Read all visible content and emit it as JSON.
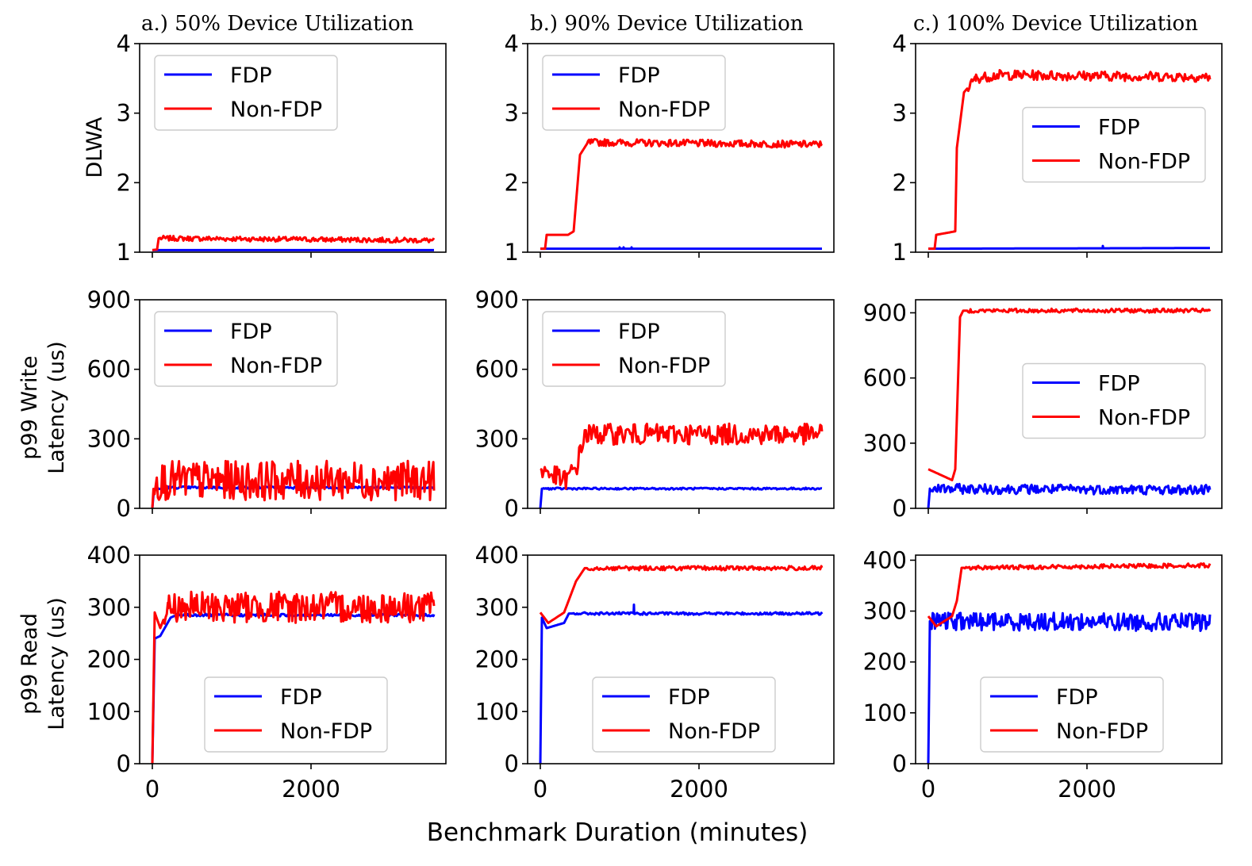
{
  "figure": {
    "xlabel": "Benchmark Duration (minutes)",
    "column_titles": [
      "a.) 50% Device Utilization",
      "b.) 90% Device Utilization",
      "c.) 100% Device Utilization"
    ],
    "row_ylabels": [
      [
        "DLWA"
      ],
      [
        "p99  Write",
        "Latency (us)"
      ],
      [
        "p99  Read",
        "Latency (us)"
      ]
    ],
    "colors": {
      "FDP": "#0000ff",
      "Non-FDP": "#ff0000"
    }
  },
  "chart_data": [
    {
      "type": "line",
      "panel": "a-DLWA",
      "title": "a.) 50% Device Utilization",
      "ylabel": "DLWA",
      "xlabel": "",
      "xlim": [
        -160,
        3700
      ],
      "ylim": [
        1.0,
        4.0
      ],
      "yticks": [
        1,
        2,
        3,
        4
      ],
      "xticks": [
        0,
        2000
      ],
      "show_xticklabels": false,
      "legend": "top-left",
      "series": [
        {
          "name": "FDP",
          "style": "flat",
          "points": [
            [
              0,
              1.03
            ],
            [
              3550,
              1.03
            ]
          ],
          "level": 1.03,
          "noise": 0.0
        },
        {
          "name": "Non-FDP",
          "style": "noisy",
          "points": [
            [
              0,
              1.03
            ],
            [
              60,
              1.04
            ],
            [
              80,
              1.2
            ],
            [
              3550,
              1.17
            ]
          ],
          "noise": 0.07,
          "start_noise_x": 90
        }
      ]
    },
    {
      "type": "line",
      "panel": "b-DLWA",
      "title": "b.) 90% Device Utilization",
      "ylabel": "",
      "xlabel": "",
      "xlim": [
        -160,
        3700
      ],
      "ylim": [
        1.0,
        4.0
      ],
      "yticks": [
        1,
        2,
        3,
        4
      ],
      "xticks": [
        0,
        2000
      ],
      "show_xticklabels": false,
      "legend": "top-left",
      "series": [
        {
          "name": "FDP",
          "style": "flat",
          "points": [
            [
              0,
              1.05
            ],
            [
              3550,
              1.05
            ]
          ],
          "noise": 0.0,
          "spikes": [
            [
              1000,
              1.07
            ],
            [
              1050,
              1.07
            ],
            [
              1150,
              1.07
            ]
          ]
        },
        {
          "name": "Non-FDP",
          "style": "noisy",
          "points": [
            [
              0,
              1.05
            ],
            [
              60,
              1.05
            ],
            [
              80,
              1.25
            ],
            [
              350,
              1.25
            ],
            [
              420,
              1.3
            ],
            [
              500,
              2.4
            ],
            [
              600,
              2.58
            ],
            [
              3550,
              2.55
            ]
          ],
          "noise": 0.1,
          "start_noise_x": 600
        }
      ]
    },
    {
      "type": "line",
      "panel": "c-DLWA",
      "title": "c.) 100% Device Utilization",
      "ylabel": "",
      "xlabel": "",
      "xlim": [
        -160,
        3700
      ],
      "ylim": [
        1.0,
        4.0
      ],
      "yticks": [
        1,
        2,
        3,
        4
      ],
      "xticks": [
        0,
        2000
      ],
      "show_xticklabels": false,
      "legend": "center-right",
      "series": [
        {
          "name": "FDP",
          "style": "flat",
          "points": [
            [
              0,
              1.05
            ],
            [
              3550,
              1.06
            ]
          ],
          "noise": 0.0,
          "spikes": [
            [
              2200,
              1.09
            ]
          ]
        },
        {
          "name": "Non-FDP",
          "style": "noisy",
          "points": [
            [
              0,
              1.05
            ],
            [
              80,
              1.05
            ],
            [
              100,
              1.25
            ],
            [
              340,
              1.3
            ],
            [
              360,
              2.5
            ],
            [
              450,
              3.3
            ],
            [
              600,
              3.5
            ],
            [
              900,
              3.55
            ],
            [
              3550,
              3.52
            ]
          ],
          "noise": 0.14,
          "start_noise_x": 500
        }
      ]
    },
    {
      "type": "line",
      "panel": "a-Write",
      "title": "",
      "ylabel": "p99 Write Latency (us)",
      "xlabel": "",
      "xlim": [
        -160,
        3700
      ],
      "ylim": [
        0,
        900
      ],
      "yticks": [
        0,
        300,
        600,
        900
      ],
      "xticks": [
        0,
        2000
      ],
      "show_xticklabels": false,
      "legend": "top-left",
      "series": [
        {
          "name": "FDP",
          "style": "noisy",
          "points": [
            [
              0,
              0
            ],
            [
              20,
              80
            ],
            [
              200,
              90
            ],
            [
              3550,
              90
            ]
          ],
          "noise": 10,
          "start_noise_x": 50
        },
        {
          "name": "Non-FDP",
          "style": "noisy",
          "points": [
            [
              0,
              0
            ],
            [
              20,
              120
            ],
            [
              3550,
              120
            ]
          ],
          "noise": 170,
          "start_noise_x": 20
        }
      ]
    },
    {
      "type": "line",
      "panel": "b-Write",
      "title": "",
      "ylabel": "",
      "xlabel": "",
      "xlim": [
        -160,
        3700
      ],
      "ylim": [
        0,
        900
      ],
      "yticks": [
        0,
        300,
        600,
        900
      ],
      "xticks": [
        0,
        2000
      ],
      "show_xticklabels": false,
      "legend": "top-left",
      "series": [
        {
          "name": "FDP",
          "style": "noisy",
          "points": [
            [
              0,
              0
            ],
            [
              20,
              85
            ],
            [
              3550,
              85
            ]
          ],
          "noise": 8,
          "start_noise_x": 30
        },
        {
          "name": "Non-FDP",
          "style": "noisy",
          "points": [
            [
              0,
              170
            ],
            [
              300,
              120
            ],
            [
              450,
              170
            ],
            [
              560,
              320
            ],
            [
              3550,
              320
            ]
          ],
          "noise": 90,
          "start_noise_x": 20
        }
      ]
    },
    {
      "type": "line",
      "panel": "c-Write",
      "title": "",
      "ylabel": "",
      "xlabel": "",
      "xlim": [
        -160,
        3700
      ],
      "ylim": [
        0,
        960
      ],
      "yticks": [
        0,
        300,
        600,
        900
      ],
      "xticks": [
        0,
        2000
      ],
      "show_xticklabels": false,
      "legend": "center-right",
      "series": [
        {
          "name": "FDP",
          "style": "noisy",
          "points": [
            [
              0,
              0
            ],
            [
              20,
              90
            ],
            [
              3550,
              85
            ]
          ],
          "noise": 45,
          "start_noise_x": 20
        },
        {
          "name": "Non-FDP",
          "style": "noisy",
          "points": [
            [
              0,
              180
            ],
            [
              300,
              130
            ],
            [
              340,
              180
            ],
            [
              400,
              880
            ],
            [
              440,
              910
            ],
            [
              3550,
              910
            ]
          ],
          "noise": 18,
          "start_noise_x": 500
        }
      ]
    },
    {
      "type": "line",
      "panel": "a-Read",
      "title": "",
      "ylabel": "p99 Read Latency (us)",
      "xlabel": "",
      "xlim": [
        -160,
        3700
      ],
      "ylim": [
        0,
        400
      ],
      "yticks": [
        0,
        100,
        200,
        300,
        400
      ],
      "xticks": [
        0,
        2000
      ],
      "show_xticklabels": true,
      "legend": "bottom-right",
      "series": [
        {
          "name": "FDP",
          "style": "noisy",
          "points": [
            [
              0,
              0
            ],
            [
              30,
              240
            ],
            [
              100,
              245
            ],
            [
              230,
              280
            ],
            [
              300,
              285
            ],
            [
              3550,
              285
            ]
          ],
          "noise": 5,
          "start_noise_x": 300
        },
        {
          "name": "Non-FDP",
          "style": "noisy",
          "points": [
            [
              0,
              0
            ],
            [
              30,
              290
            ],
            [
              100,
              260
            ],
            [
              200,
              300
            ],
            [
              3550,
              300
            ]
          ],
          "noise": 60,
          "start_noise_x": 150
        }
      ]
    },
    {
      "type": "line",
      "panel": "b-Read",
      "title": "",
      "ylabel": "",
      "xlabel": "",
      "xlim": [
        -160,
        3700
      ],
      "ylim": [
        0,
        400
      ],
      "yticks": [
        0,
        100,
        200,
        300,
        400
      ],
      "xticks": [
        0,
        2000
      ],
      "show_xticklabels": true,
      "legend": "bottom-right",
      "series": [
        {
          "name": "FDP",
          "style": "noisy",
          "points": [
            [
              0,
              0
            ],
            [
              20,
              280
            ],
            [
              80,
              260
            ],
            [
              300,
              270
            ],
            [
              360,
              288
            ],
            [
              3550,
              288
            ]
          ],
          "noise": 5,
          "start_noise_x": 400,
          "spikes": [
            [
              1180,
              305
            ]
          ]
        },
        {
          "name": "Non-FDP",
          "style": "noisy",
          "points": [
            [
              0,
              290
            ],
            [
              100,
              270
            ],
            [
              300,
              290
            ],
            [
              450,
              350
            ],
            [
              560,
              375
            ],
            [
              3550,
              375
            ]
          ],
          "noise": 8,
          "start_noise_x": 600
        }
      ]
    },
    {
      "type": "line",
      "panel": "c-Read",
      "title": "",
      "ylabel": "",
      "xlabel": "",
      "xlim": [
        -160,
        3700
      ],
      "ylim": [
        0,
        410
      ],
      "yticks": [
        0,
        100,
        200,
        300,
        400
      ],
      "xticks": [
        0,
        2000
      ],
      "show_xticklabels": true,
      "legend": "bottom-right",
      "series": [
        {
          "name": "FDP",
          "style": "noisy",
          "points": [
            [
              0,
              0
            ],
            [
              20,
              280
            ],
            [
              3550,
              278
            ]
          ],
          "noise": 35,
          "start_noise_x": 30
        },
        {
          "name": "Non-FDP",
          "style": "noisy",
          "points": [
            [
              0,
              290
            ],
            [
              100,
              270
            ],
            [
              300,
              290
            ],
            [
              360,
              320
            ],
            [
              420,
              385
            ],
            [
              3550,
              390
            ]
          ],
          "noise": 8,
          "start_noise_x": 450
        }
      ]
    }
  ]
}
